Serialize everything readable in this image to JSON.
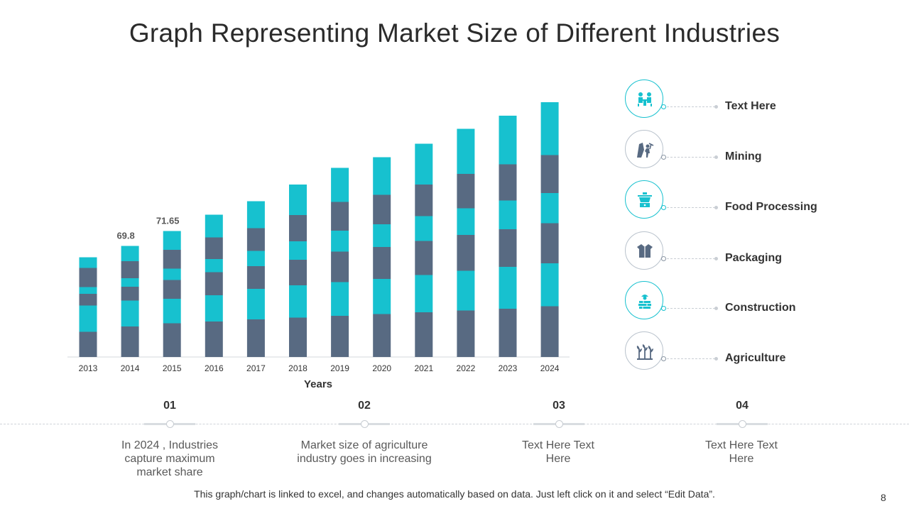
{
  "title": "Graph Representing Market Size of Different Industries",
  "chart_data": {
    "type": "bar",
    "stacked": true,
    "categories": [
      "2013",
      "2014",
      "2015",
      "2016",
      "2017",
      "2018",
      "2019",
      "2020",
      "2021",
      "2022",
      "2023",
      "2024"
    ],
    "series": [
      {
        "name": "Agriculture",
        "color": "#586a82",
        "values": [
          7.1,
          8.6,
          9.5,
          10.0,
          10.6,
          11.1,
          11.6,
          12.1,
          12.6,
          13.1,
          13.6,
          14.3
        ]
      },
      {
        "name": "Construction",
        "color": "#17c1cf",
        "values": [
          7.4,
          7.3,
          6.9,
          7.4,
          8.6,
          9.1,
          9.5,
          9.9,
          10.5,
          11.2,
          11.8,
          12.1
        ]
      },
      {
        "name": "Packaging",
        "color": "#586a82",
        "values": [
          3.3,
          3.9,
          5.3,
          6.5,
          6.4,
          7.2,
          8.6,
          9.0,
          9.6,
          10.1,
          10.6,
          11.3
        ]
      },
      {
        "name": "Food Processing",
        "color": "#17c1cf",
        "values": [
          1.9,
          2.4,
          3.2,
          3.7,
          4.3,
          5.2,
          5.9,
          6.4,
          7.0,
          7.5,
          8.1,
          8.5
        ]
      },
      {
        "name": "Mining",
        "color": "#586a82",
        "values": [
          5.4,
          4.8,
          5.3,
          6.1,
          6.4,
          7.4,
          8.1,
          8.3,
          8.9,
          9.7,
          10.2,
          10.7
        ]
      },
      {
        "name": "Text Here",
        "color": "#17c1cf",
        "values": [
          3.0,
          4.3,
          5.3,
          6.4,
          7.6,
          8.6,
          9.6,
          10.6,
          11.5,
          12.7,
          13.7,
          14.9
        ]
      }
    ],
    "data_labels": [
      {
        "category": "2014",
        "text": "69.8"
      },
      {
        "category": "2015",
        "text": "71.65"
      }
    ],
    "xlabel": "Years",
    "ylabel": "",
    "ylim": [
      0,
      75
    ],
    "grid": false,
    "legend_position": "right"
  },
  "legend": [
    {
      "label": "Text Here",
      "icon": "meeting-icon",
      "accent": "#17c1cf"
    },
    {
      "label": "Mining",
      "icon": "mining-icon",
      "accent": "#586a82"
    },
    {
      "label": "Food Processing",
      "icon": "food-processing-icon",
      "accent": "#17c1cf"
    },
    {
      "label": "Packaging",
      "icon": "packaging-icon",
      "accent": "#586a82"
    },
    {
      "label": "Construction",
      "icon": "construction-icon",
      "accent": "#17c1cf"
    },
    {
      "label": "Agriculture",
      "icon": "agriculture-icon",
      "accent": "#586a82"
    }
  ],
  "steps": [
    {
      "number": "01",
      "text": "In 2024 , Industries capture maximum market share"
    },
    {
      "number": "02",
      "text": "Market size of agriculture industry goes in increasing"
    },
    {
      "number": "03",
      "text": "Text Here Text Here"
    },
    {
      "number": "04",
      "text": "Text Here Text Here"
    }
  ],
  "footnote": "This graph/chart is linked to excel, and changes automatically based on data. Just left click on it and select “Edit Data”.",
  "page_number": "8"
}
